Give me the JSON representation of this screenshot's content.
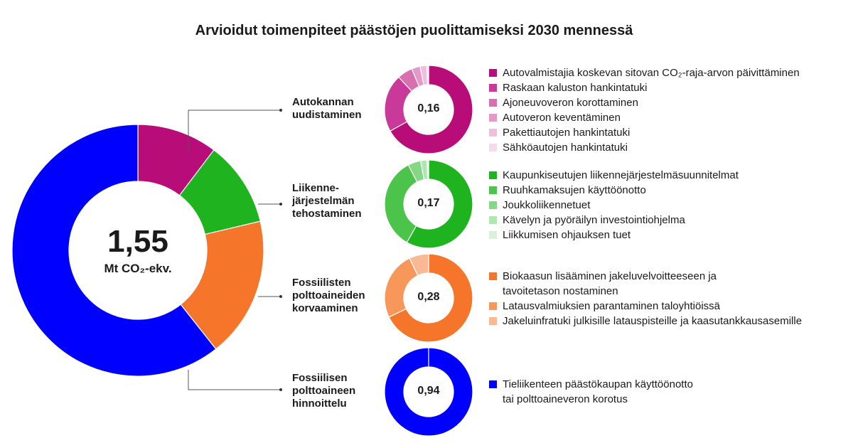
{
  "chart_data": {
    "type": "pie",
    "title": "Arvioidut toimenpiteet päästöjen puolittamiseksi 2030 mennessä",
    "total": {
      "value": "1,55",
      "unit": "Mt CO₂-ekv."
    },
    "groups": [
      {
        "name": "Autokannan uudistaminen",
        "lines": [
          "Autokannan",
          "uudistaminen"
        ],
        "value": 0.16,
        "label": "0,16",
        "color": "#b80c78",
        "items": [
          {
            "name": "Autovalmistajia koskevan sitovan CO₂-raja-arvon päivittäminen",
            "value": 0.107,
            "color": "#b80c78"
          },
          {
            "name": "Raskaan kaluston hankintatuki",
            "value": 0.034,
            "color": "#c8399a"
          },
          {
            "name": "Ajoneuvoveron korottaminen",
            "value": 0.009,
            "color": "#d870b0"
          },
          {
            "name": "Autoveron keventäminen",
            "value": 0.005,
            "color": "#e49ac8"
          },
          {
            "name": "Pakettiautojen hankintatuki",
            "value": 0.004,
            "color": "#eec0dd"
          },
          {
            "name": "Sähköautojen hankintatuki",
            "value": 0.001,
            "color": "#f5dcec"
          }
        ]
      },
      {
        "name": "Liikennejärjestelmän tehostaminen",
        "lines": [
          "Liikenne-",
          "järjestelmän",
          "tehostaminen"
        ],
        "value": 0.17,
        "label": "0,17",
        "color": "#1fb41f",
        "items": [
          {
            "name": "Kaupunkiseutujen liikennejärjestelmäsuunnitelmat",
            "value": 0.099,
            "color": "#1fb41f"
          },
          {
            "name": "Ruuhkamaksujen käyttöönotto",
            "value": 0.058,
            "color": "#4cc44c"
          },
          {
            "name": "Joukkoliikennetuet",
            "value": 0.008,
            "color": "#85d685"
          },
          {
            "name": "Kävelyn ja pyöräilyn investointiohjelma",
            "value": 0.004,
            "color": "#b0e6b0"
          },
          {
            "name": "Liikkumisen ohjauksen tuet",
            "value": 0.001,
            "color": "#d8f2d8"
          }
        ]
      },
      {
        "name": "Fossiilisten polttoaineiden korvaaminen",
        "lines": [
          "Fossiilisten",
          "polttoaineiden",
          "korvaaminen"
        ],
        "value": 0.28,
        "label": "0,28",
        "color": "#f5762a",
        "items": [
          {
            "name": "Biokaasun lisääminen jakeluvelvoitteeseen ja tavoitetason nostaminen",
            "lines": [
              "Biokaasun lisääminen jakeluvelvoitteeseen ja",
              "tavoitetason nostaminen"
            ],
            "value": 0.19,
            "color": "#f5762a"
          },
          {
            "name": "Latausvalmiuksien parantaminen taloyhtiöissä",
            "value": 0.07,
            "color": "#f7975a"
          },
          {
            "name": "Jakeluinfratuki julkisille latauspisteille ja kaasutankkausasemille",
            "value": 0.02,
            "color": "#f9b994"
          }
        ]
      },
      {
        "name": "Fossiilisen polttoaineen hinnoittelu",
        "lines": [
          "Fossiilisen",
          "polttoaineen",
          "hinnoittelu"
        ],
        "value": 0.94,
        "label": "0,94",
        "color": "#0000ff",
        "items": [
          {
            "name": "Tieliikenteen päästökaupan käyttöönotto tai polttoaineveron korotus",
            "lines": [
              "Tieliikenteen päästökaupan käyttöönotto",
              "tai polttoaineveron korotus"
            ],
            "value": 0.94,
            "color": "#0000ff"
          }
        ]
      }
    ]
  }
}
